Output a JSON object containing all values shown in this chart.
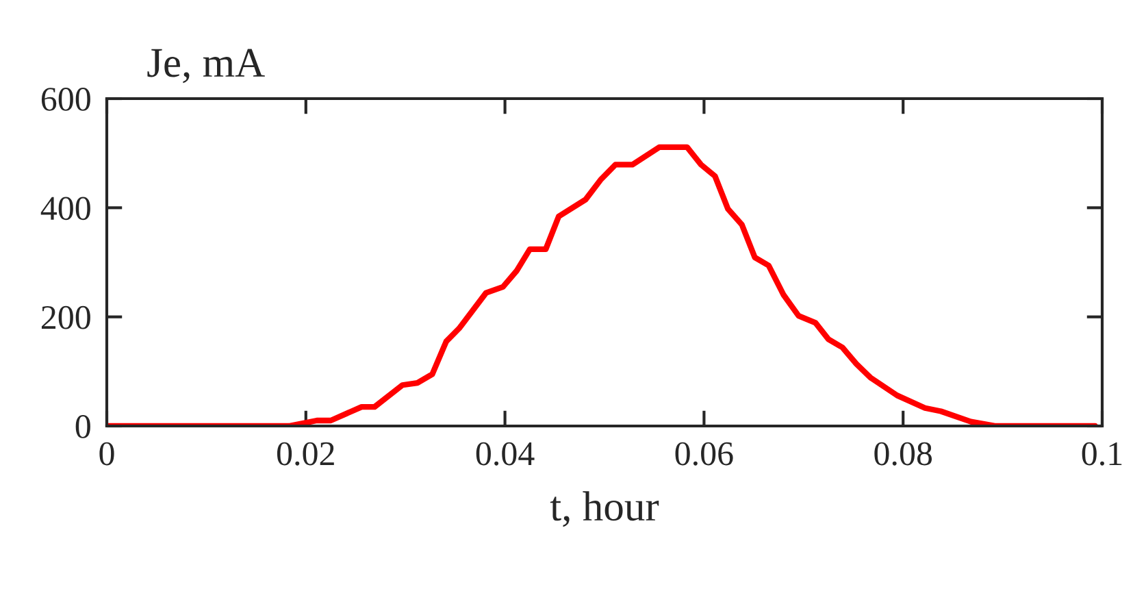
{
  "chart_data": {
    "type": "line",
    "xlabel": "t, hour",
    "ylabel": "Je, mA",
    "x": [
      0,
      0.0183,
      0.0211,
      0.0225,
      0.0256,
      0.0269,
      0.0297,
      0.0312,
      0.0327,
      0.0341,
      0.0354,
      0.0381,
      0.0398,
      0.0412,
      0.0425,
      0.0441,
      0.0454,
      0.0481,
      0.0496,
      0.0511,
      0.0528,
      0.0555,
      0.0583,
      0.0597,
      0.0611,
      0.0624,
      0.0638,
      0.0651,
      0.0665,
      0.068,
      0.0695,
      0.0712,
      0.0725,
      0.0739,
      0.0753,
      0.0767,
      0.0794,
      0.0822,
      0.0838,
      0.0868,
      0.0893,
      0.0993
    ],
    "series": [
      {
        "color": "#ff0000",
        "values": [
          0,
          0,
          10,
          10,
          35,
          35,
          75,
          79,
          95,
          155,
          179,
          244,
          255,
          285,
          324,
          324,
          384,
          415,
          451,
          479,
          479,
          511,
          511,
          479,
          458,
          398,
          369,
          309,
          294,
          240,
          202,
          189,
          159,
          144,
          114,
          89,
          56,
          33,
          27,
          8,
          0,
          0
        ]
      }
    ],
    "xlim": [
      0,
      0.1
    ],
    "ylim": [
      0,
      600
    ],
    "xticks": [
      0,
      0.02,
      0.04,
      0.06,
      0.08,
      0.1
    ],
    "yticks": [
      0,
      200,
      400,
      600
    ],
    "grid": false,
    "legend": false,
    "marker": "none",
    "line_style": "solid"
  }
}
